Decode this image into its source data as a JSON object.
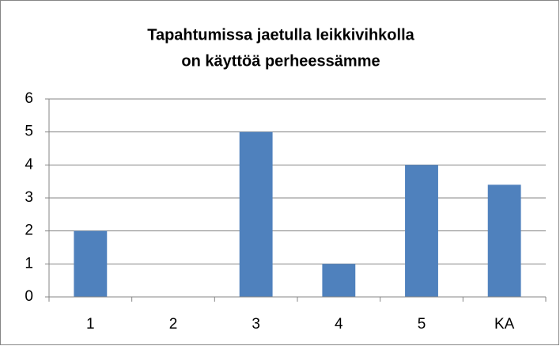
{
  "chart_data": {
    "type": "bar",
    "title": [
      "Tapahtumissa jaetulla leikkivihkolla",
      "on käyttöä perheessämme"
    ],
    "categories": [
      "1",
      "2",
      "3",
      "4",
      "5",
      "KA"
    ],
    "values": [
      2,
      0,
      5,
      1,
      4,
      3.4
    ],
    "color": "#4f81bd",
    "ylim": [
      0,
      6
    ],
    "yticks": [
      0,
      1,
      2,
      3,
      4,
      5,
      6
    ],
    "grid": true
  }
}
